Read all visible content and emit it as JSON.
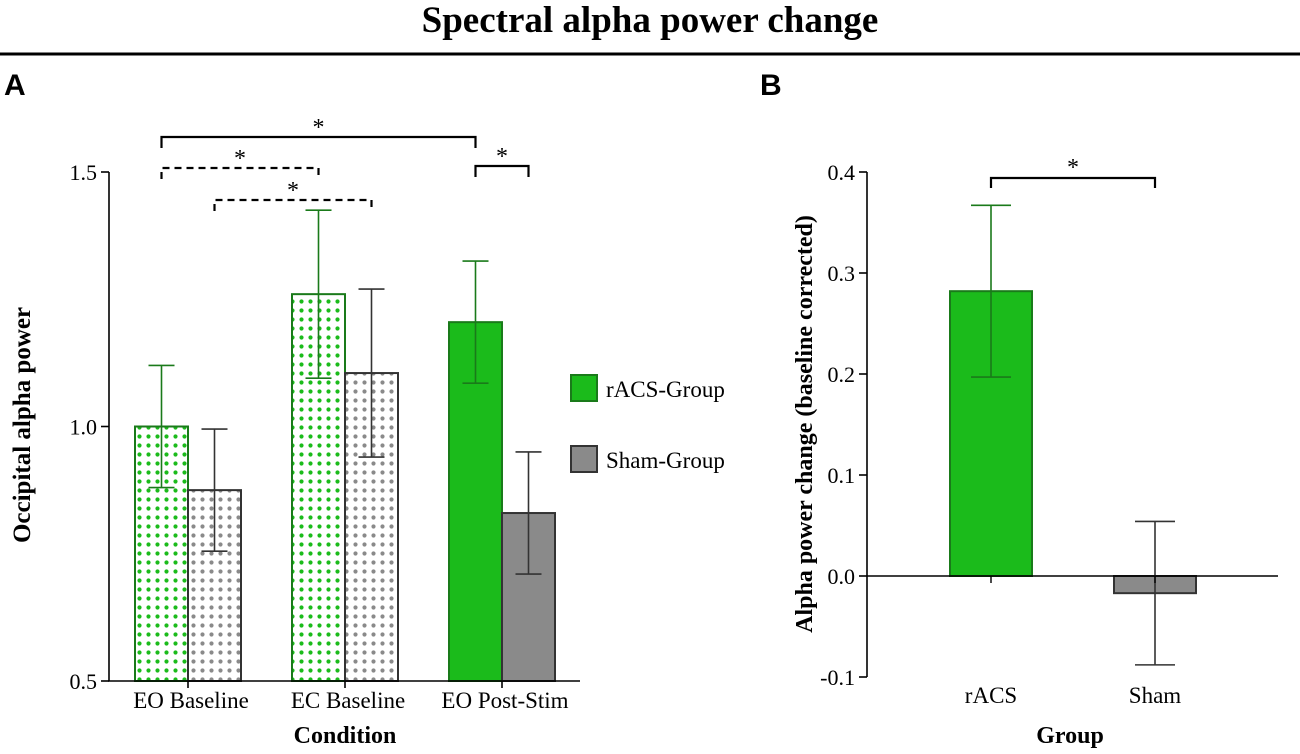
{
  "figure_title": "Spectral alpha power change",
  "colors": {
    "racs": "#1bbb1b",
    "racs_dark": "#1a7a1a",
    "sham": "#8a8a8a",
    "sham_dark": "#333333",
    "axis": "#000000"
  },
  "chart_data": [
    {
      "panel": "A",
      "type": "bar",
      "title": "",
      "xlabel": "Condition",
      "ylabel": "Occipital alpha power",
      "ylim": [
        0.5,
        1.5
      ],
      "yticks": [
        0.5,
        1.0,
        1.5
      ],
      "ytick_labels": [
        "0.5",
        "1.0",
        "1.5"
      ],
      "categories": [
        "EO Baseline",
        "EC Baseline",
        "EO Post-Stim"
      ],
      "series": [
        {
          "name": "rACS-Group",
          "values": [
            1.0,
            1.26,
            1.205
          ],
          "error": [
            0.12,
            0.165,
            0.12
          ],
          "patterned": [
            true,
            true,
            false
          ]
        },
        {
          "name": "Sham-Group",
          "values": [
            0.875,
            1.105,
            0.83
          ],
          "error": [
            0.12,
            0.165,
            0.12
          ],
          "patterned": [
            true,
            true,
            false
          ]
        }
      ],
      "legend": [
        {
          "label": "rACS-Group",
          "series": 0
        },
        {
          "label": "Sham-Group",
          "series": 1
        }
      ],
      "legend_position": "right",
      "significance": [
        {
          "from": [
            0,
            0
          ],
          "to": [
            2,
            0
          ],
          "style": "solid",
          "label": "*"
        },
        {
          "from": [
            0,
            0
          ],
          "to": [
            1,
            0
          ],
          "style": "dashed",
          "label": "*"
        },
        {
          "from": [
            0,
            1
          ],
          "to": [
            1,
            1
          ],
          "style": "dashed",
          "label": "*"
        },
        {
          "from": [
            2,
            0
          ],
          "to": [
            2,
            1
          ],
          "style": "solid",
          "label": "*"
        }
      ]
    },
    {
      "panel": "B",
      "type": "bar",
      "title": "",
      "xlabel": "Group",
      "ylabel": "Alpha power change (baseline corrected)",
      "ylim": [
        -0.1,
        0.4
      ],
      "yticks": [
        -0.1,
        0.0,
        0.1,
        0.2,
        0.3,
        0.4
      ],
      "ytick_labels": [
        "-0.1",
        "0.0",
        "0.1",
        "0.2",
        "0.3",
        "0.4"
      ],
      "categories": [
        "rACS",
        "Sham"
      ],
      "values": [
        0.282,
        -0.017
      ],
      "error_low": [
        0.197,
        -0.088
      ],
      "error_high": [
        0.367,
        0.054
      ],
      "significance": [
        {
          "from": 0,
          "to": 1,
          "style": "solid",
          "label": "*"
        }
      ]
    }
  ]
}
